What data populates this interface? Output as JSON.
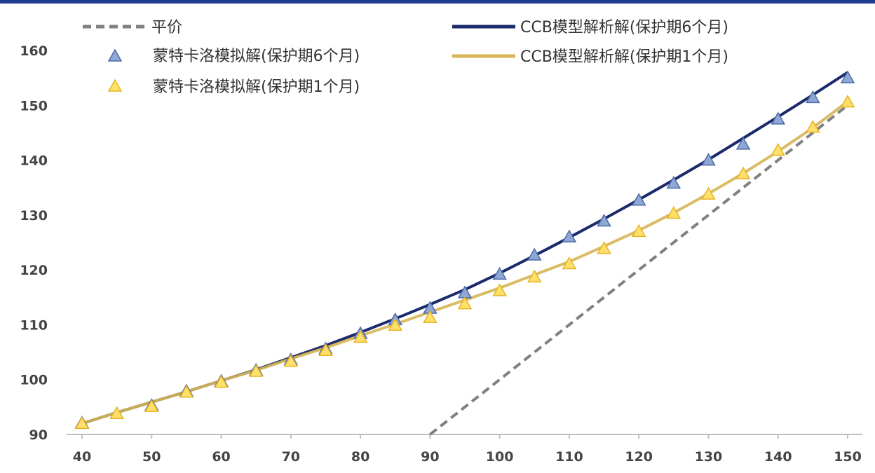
{
  "colors": {
    "parity": "#808080",
    "ccb6": "#1b2a6b",
    "ccb1": "#d6b656",
    "mc6_fill": "#8fa7d4",
    "mc6_stroke": "#4d6aa8",
    "mc1_fill": "#ffe06b",
    "mc1_stroke": "#e6b422"
  },
  "chart_data": {
    "type": "line",
    "xlim": [
      40,
      150
    ],
    "ylim": [
      90,
      160
    ],
    "x_ticks": [
      40,
      50,
      60,
      70,
      80,
      90,
      100,
      110,
      120,
      130,
      140,
      150
    ],
    "y_ticks": [
      90,
      100,
      110,
      120,
      130,
      140,
      150,
      160
    ],
    "x_tick_labels": [
      "40",
      "50",
      "60",
      "70",
      "80",
      "90",
      "100",
      "110",
      "120",
      "130",
      "140",
      "150"
    ],
    "y_tick_labels": [
      "90",
      "100",
      "110",
      "120",
      "130",
      "140",
      "150",
      "160"
    ],
    "legend_position": "top",
    "series": [
      {
        "name": "平价",
        "style": "dashed-line",
        "x": [
          90,
          150
        ],
        "y": [
          90,
          150
        ]
      },
      {
        "name": "CCB模型解析解(保护期6个月)",
        "style": "line",
        "x": [
          40,
          45,
          50,
          55,
          60,
          65,
          70,
          75,
          80,
          85,
          90,
          95,
          100,
          105,
          110,
          115,
          120,
          125,
          130,
          135,
          140,
          145,
          150
        ],
        "y": [
          92.0,
          94.0,
          95.9,
          97.8,
          99.8,
          101.8,
          104.0,
          106.2,
          108.6,
          111.1,
          113.7,
          116.4,
          119.4,
          122.6,
          125.9,
          129.3,
          132.8,
          136.4,
          140.1,
          144.0,
          147.9,
          151.9,
          156.0
        ]
      },
      {
        "name": "CCB模型解析解(保护期1个月)",
        "style": "line",
        "x": [
          40,
          45,
          50,
          55,
          60,
          65,
          70,
          75,
          80,
          85,
          90,
          95,
          100,
          105,
          110,
          115,
          120,
          125,
          130,
          135,
          140,
          145,
          150
        ],
        "y": [
          92.0,
          94.0,
          95.9,
          97.8,
          99.8,
          101.7,
          103.8,
          105.8,
          108.0,
          110.1,
          112.3,
          114.5,
          116.7,
          119.1,
          121.5,
          124.3,
          127.2,
          130.4,
          133.9,
          137.6,
          141.6,
          145.9,
          150.7
        ]
      },
      {
        "name": "蒙特卡洛模拟解(保护期6个月)",
        "style": "triangle-marker",
        "x": [
          40,
          45,
          50,
          55,
          60,
          65,
          70,
          75,
          80,
          85,
          90,
          95,
          100,
          105,
          110,
          115,
          120,
          125,
          130,
          135,
          140,
          145,
          150
        ],
        "y": [
          92.1,
          93.8,
          95.3,
          97.9,
          99.7,
          101.7,
          103.6,
          105.6,
          108.4,
          110.9,
          113.0,
          115.8,
          119.2,
          122.7,
          126.0,
          128.9,
          132.7,
          135.8,
          140.0,
          142.9,
          147.5,
          151.4,
          155.0
        ]
      },
      {
        "name": "蒙特卡洛模拟解(保护期1个月)",
        "style": "triangle-marker",
        "x": [
          40,
          45,
          50,
          55,
          60,
          65,
          70,
          75,
          80,
          85,
          90,
          95,
          100,
          105,
          110,
          115,
          120,
          125,
          130,
          135,
          140,
          145,
          150
        ],
        "y": [
          92.0,
          93.8,
          95.1,
          97.7,
          99.5,
          101.5,
          103.3,
          105.3,
          107.7,
          109.9,
          111.3,
          113.8,
          116.2,
          118.7,
          121.1,
          123.9,
          127.0,
          130.3,
          133.8,
          137.5,
          141.8,
          146.0,
          150.6
        ]
      }
    ]
  }
}
